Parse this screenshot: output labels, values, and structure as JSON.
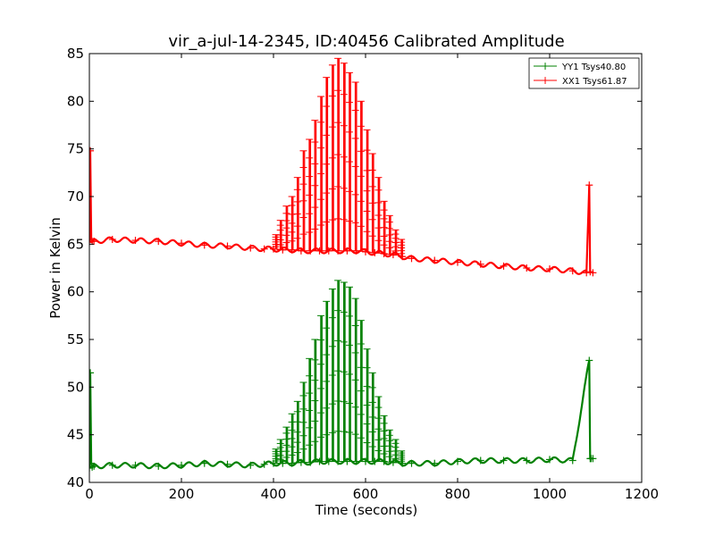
{
  "chart_data": {
    "type": "line",
    "title": "vir_a-jul-14-2345, ID:40456 Calibrated Amplitude",
    "xlabel": "Time (seconds)",
    "ylabel": "Power in Kelvin",
    "xlim": [
      0,
      1200
    ],
    "ylim": [
      40,
      85
    ],
    "xticks": [
      0,
      200,
      400,
      600,
      800,
      1000,
      1200
    ],
    "yticks": [
      40,
      45,
      50,
      55,
      60,
      65,
      70,
      75,
      80,
      85
    ],
    "grid": false,
    "legend_position": "top-right",
    "series": [
      {
        "name": "YY1 Tsys40.80",
        "color": "#008000",
        "marker": "+",
        "x": [
          0,
          2,
          4,
          6,
          10,
          50,
          100,
          150,
          200,
          250,
          300,
          350,
          380,
          400,
          420,
          440,
          460,
          480,
          500,
          520,
          540,
          560,
          580,
          600,
          620,
          640,
          660,
          680,
          700,
          750,
          800,
          850,
          900,
          950,
          1000,
          1050,
          1086,
          1088,
          1090,
          1094
        ],
        "y": [
          41.5,
          51.5,
          42.0,
          41.6,
          41.7,
          41.8,
          41.8,
          41.7,
          41.8,
          42.0,
          41.9,
          41.8,
          41.9,
          42.0,
          42.0,
          42.0,
          42.1,
          42.1,
          42.2,
          42.2,
          42.2,
          42.2,
          42.2,
          42.2,
          42.2,
          42.2,
          42.1,
          42.0,
          42.0,
          42.0,
          42.2,
          42.3,
          42.3,
          42.3,
          42.4,
          42.3,
          52.8,
          42.5,
          42.5,
          42.5
        ]
      },
      {
        "name": "XX1 Tsys61.87",
        "color": "#ff0000",
        "marker": "+",
        "x": [
          0,
          2,
          4,
          6,
          10,
          50,
          100,
          150,
          200,
          250,
          300,
          350,
          380,
          400,
          420,
          440,
          460,
          480,
          500,
          520,
          540,
          560,
          580,
          600,
          620,
          640,
          660,
          680,
          700,
          750,
          800,
          850,
          900,
          950,
          1000,
          1050,
          1080,
          1086,
          1088,
          1094
        ],
        "y": [
          65.2,
          74.8,
          65.5,
          65.3,
          65.3,
          65.5,
          65.4,
          65.3,
          65.1,
          64.9,
          64.8,
          64.6,
          64.5,
          64.5,
          64.4,
          64.4,
          64.3,
          64.3,
          64.3,
          64.3,
          64.3,
          64.3,
          64.3,
          64.2,
          64.1,
          64.0,
          63.9,
          63.7,
          63.5,
          63.3,
          63.1,
          62.9,
          62.7,
          62.5,
          62.4,
          62.2,
          62.0,
          71.2,
          62.1,
          62.0
        ]
      }
    ],
    "peaks": [
      {
        "x": 405,
        "yy": 43.5,
        "xx": 66.0
      },
      {
        "x": 415,
        "yy": 44.5,
        "xx": 67.5
      },
      {
        "x": 428,
        "yy": 45.8,
        "xx": 69.0
      },
      {
        "x": 440,
        "yy": 47.2,
        "xx": 70.0
      },
      {
        "x": 452,
        "yy": 48.5,
        "xx": 72.0
      },
      {
        "x": 465,
        "yy": 50.5,
        "xx": 74.8
      },
      {
        "x": 478,
        "yy": 53.0,
        "xx": 76.0
      },
      {
        "x": 490,
        "yy": 55.0,
        "xx": 78.0
      },
      {
        "x": 503,
        "yy": 57.5,
        "xx": 80.5
      },
      {
        "x": 515,
        "yy": 59.0,
        "xx": 82.5
      },
      {
        "x": 528,
        "yy": 60.3,
        "xx": 83.8
      },
      {
        "x": 540,
        "yy": 61.2,
        "xx": 84.5
      },
      {
        "x": 553,
        "yy": 61.0,
        "xx": 84.0
      },
      {
        "x": 565,
        "yy": 60.5,
        "xx": 83.0
      },
      {
        "x": 578,
        "yy": 59.3,
        "xx": 82.0
      },
      {
        "x": 590,
        "yy": 57.0,
        "xx": 80.0
      },
      {
        "x": 603,
        "yy": 54.0,
        "xx": 77.0
      },
      {
        "x": 615,
        "yy": 51.5,
        "xx": 74.5
      },
      {
        "x": 628,
        "yy": 49.0,
        "xx": 72.0
      },
      {
        "x": 640,
        "yy": 47.0,
        "xx": 69.5
      },
      {
        "x": 652,
        "yy": 45.5,
        "xx": 68.0
      },
      {
        "x": 665,
        "yy": 44.5,
        "xx": 66.5
      },
      {
        "x": 678,
        "yy": 43.3,
        "xx": 65.5
      }
    ]
  }
}
